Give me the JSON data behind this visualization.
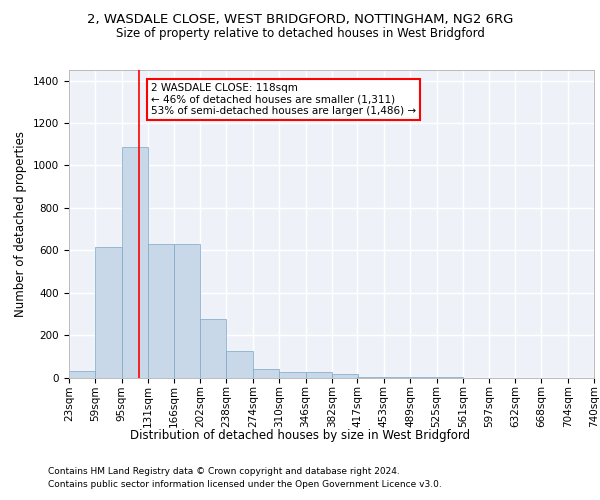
{
  "title1": "2, WASDALE CLOSE, WEST BRIDGFORD, NOTTINGHAM, NG2 6RG",
  "title2": "Size of property relative to detached houses in West Bridgford",
  "xlabel": "Distribution of detached houses by size in West Bridgford",
  "ylabel": "Number of detached properties",
  "footer1": "Contains HM Land Registry data © Crown copyright and database right 2024.",
  "footer2": "Contains public sector information licensed under the Open Government Licence v3.0.",
  "bar_color": "#c8d8e8",
  "bar_edge_color": "#7aa8c8",
  "annotation_box_text": "2 WASDALE CLOSE: 118sqm\n← 46% of detached houses are smaller (1,311)\n53% of semi-detached houses are larger (1,486) →",
  "property_line_x": 118,
  "annotation_box_color": "white",
  "annotation_box_edge_color": "red",
  "vertical_line_color": "red",
  "bin_edges": [
    23,
    59,
    95,
    131,
    166,
    202,
    238,
    274,
    310,
    346,
    382,
    417,
    453,
    489,
    525,
    561,
    597,
    632,
    668,
    704,
    740
  ],
  "bar_heights": [
    30,
    615,
    1085,
    630,
    630,
    275,
    125,
    42,
    25,
    25,
    15,
    3,
    2,
    1,
    1,
    0,
    0,
    0,
    0,
    0
  ],
  "ylim": [
    0,
    1450
  ],
  "yticks": [
    0,
    200,
    400,
    600,
    800,
    1000,
    1200,
    1400
  ],
  "background_color": "#eef2f8",
  "grid_color": "white",
  "title1_fontsize": 9.5,
  "title2_fontsize": 8.5,
  "axis_label_fontsize": 8.5,
  "tick_fontsize": 7.5,
  "footer_fontsize": 6.5,
  "annotation_fontsize": 7.5
}
